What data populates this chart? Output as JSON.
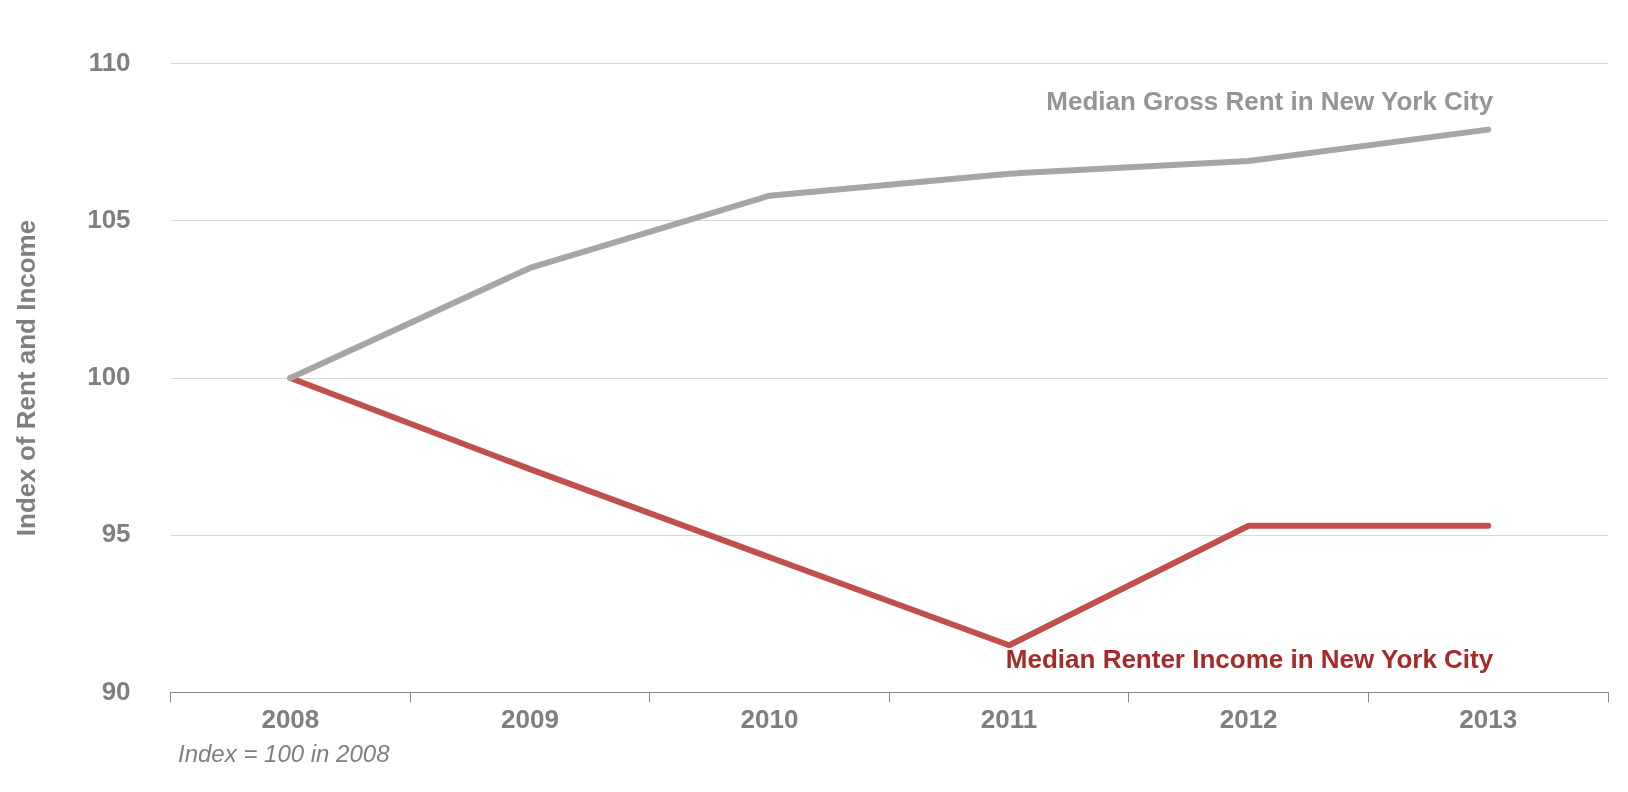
{
  "chart_data": {
    "type": "line",
    "ylabel": "Index of Rent and Income",
    "categories": [
      "2008",
      "2009",
      "2010",
      "2011",
      "2012",
      "2013"
    ],
    "series": [
      {
        "name": "Median Gross Rent in New York City",
        "color": "#a6a6a6",
        "values": [
          100,
          103.5,
          105.8,
          106.5,
          106.9,
          107.9
        ]
      },
      {
        "name": "Median Renter Income in New York City",
        "color": "#c0504d",
        "values": [
          100,
          97.1,
          94.3,
          91.5,
          95.3,
          95.3
        ]
      }
    ],
    "ylim": [
      90,
      110
    ],
    "yticks": [
      90,
      95,
      100,
      105,
      110
    ],
    "grid": "y",
    "legend": false,
    "marker": "none",
    "line_style": "solid",
    "annotations": [
      "Index = 100 in 2008"
    ]
  }
}
